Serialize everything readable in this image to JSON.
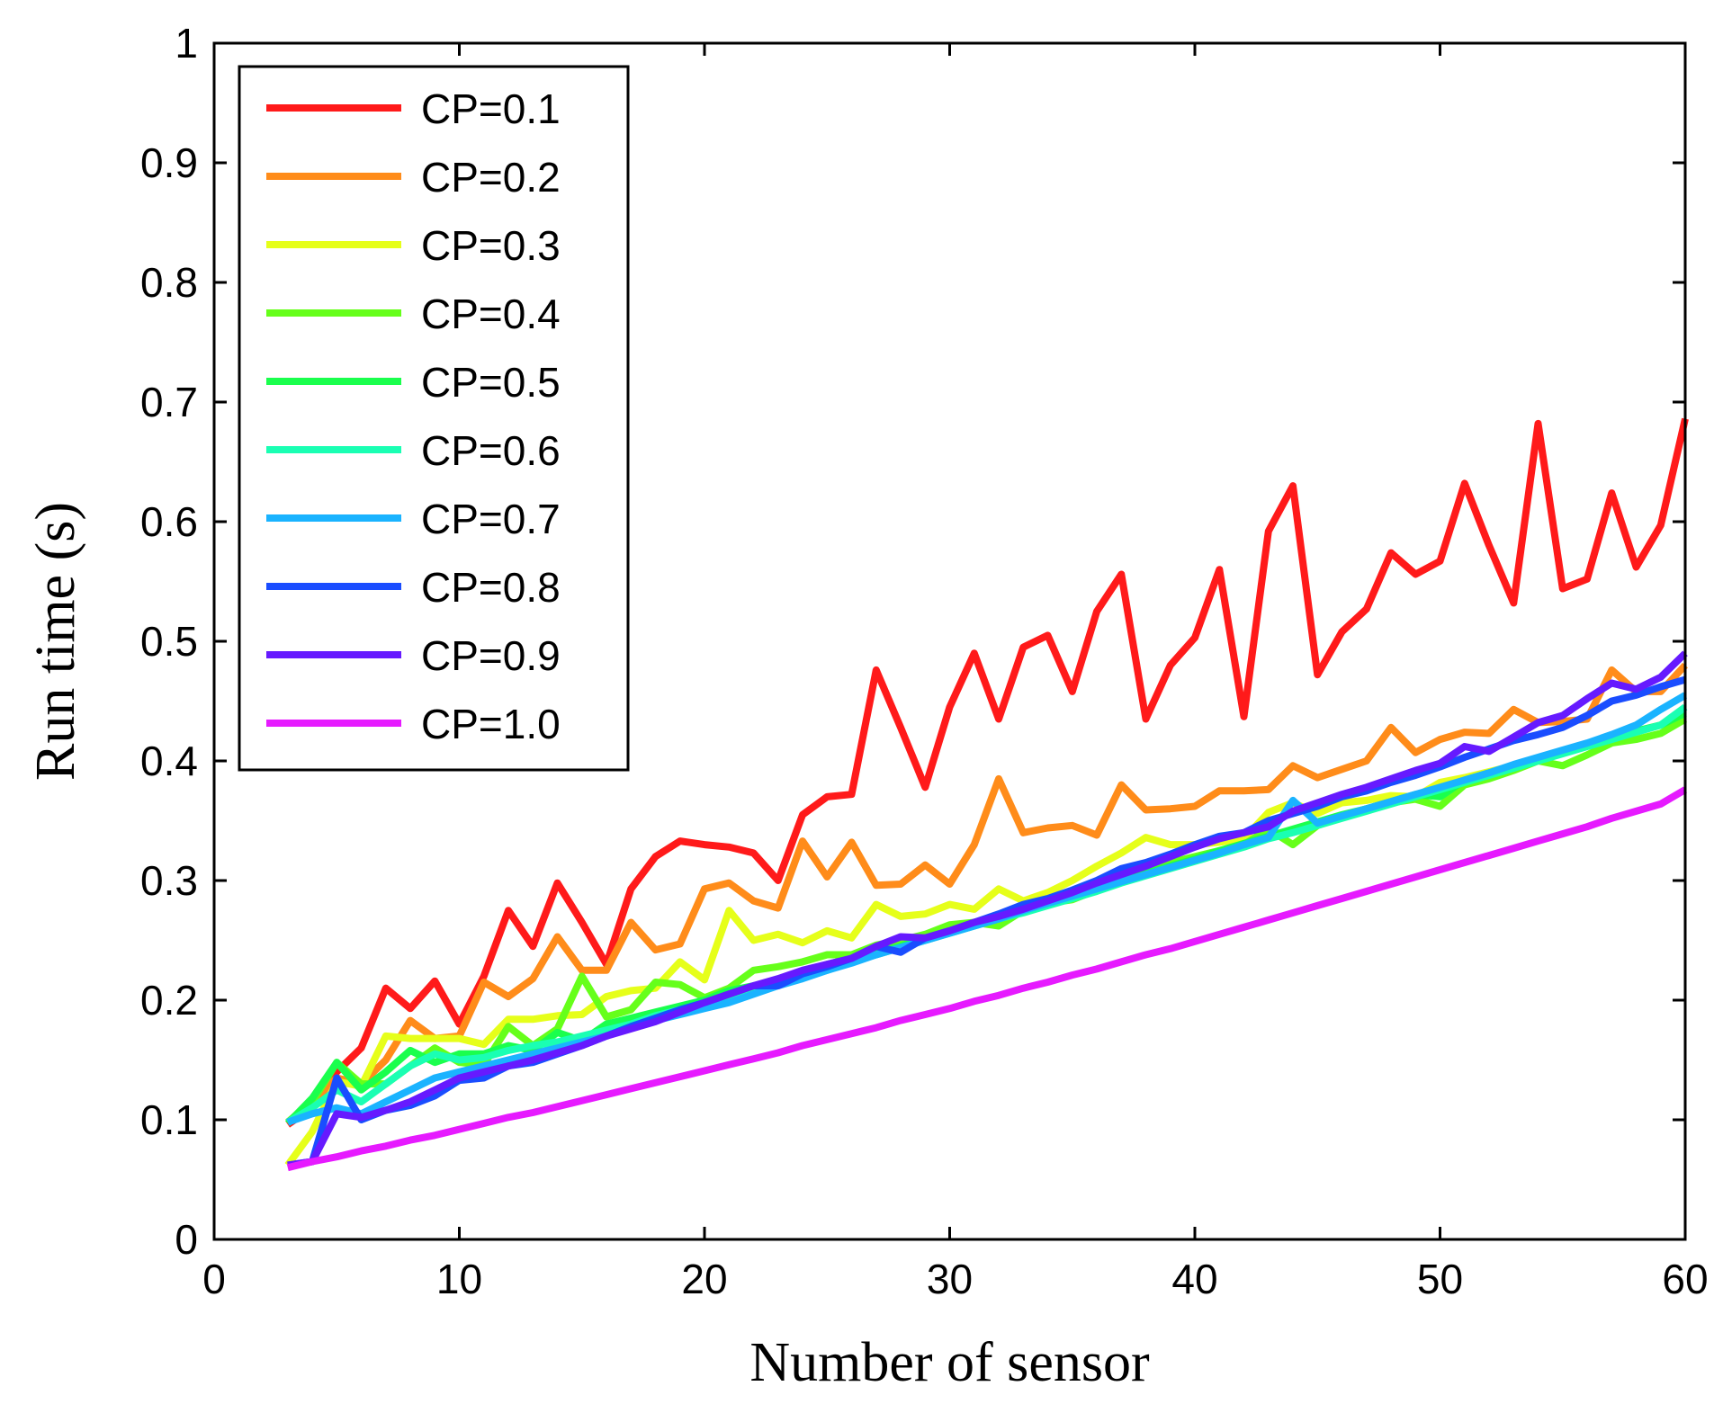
{
  "chart_data": {
    "type": "line",
    "title": "",
    "xlabel": "Number of sensor",
    "ylabel": "Run time (s)",
    "xlim": [
      0,
      60
    ],
    "ylim": [
      0,
      1
    ],
    "grid": false,
    "legend_position": "top-left",
    "xticks": [
      "0",
      "10",
      "20",
      "30",
      "40",
      "50",
      "60"
    ],
    "yticks": [
      "0",
      "0.1",
      "0.2",
      "0.3",
      "0.4",
      "0.5",
      "0.6",
      "0.7",
      "0.8",
      "0.9",
      "1"
    ],
    "x": [
      3,
      4,
      5,
      6,
      7,
      8,
      9,
      10,
      11,
      12,
      13,
      14,
      15,
      16,
      17,
      18,
      19,
      20,
      21,
      22,
      23,
      24,
      25,
      26,
      27,
      28,
      29,
      30,
      31,
      32,
      33,
      34,
      35,
      36,
      37,
      38,
      39,
      40,
      41,
      42,
      43,
      44,
      45,
      46,
      47,
      48,
      49,
      50,
      51,
      52,
      53,
      54,
      55,
      56,
      57,
      58,
      59,
      60
    ],
    "series": [
      {
        "name": "CP=0.1",
        "color": "#ff1a1a",
        "values": [
          0.096,
          0.11,
          0.14,
          0.16,
          0.21,
          0.193,
          0.216,
          0.18,
          0.22,
          0.275,
          0.245,
          0.298,
          0.265,
          0.23,
          0.293,
          0.32,
          0.333,
          0.33,
          0.328,
          0.323,
          0.3,
          0.355,
          0.37,
          0.372,
          0.476,
          0.428,
          0.378,
          0.445,
          0.49,
          0.435,
          0.495,
          0.505,
          0.458,
          0.525,
          0.556,
          0.435,
          0.48,
          0.503,
          0.56,
          0.437,
          0.592,
          0.63,
          0.472,
          0.508,
          0.527,
          0.574,
          0.556,
          0.567,
          0.632,
          0.58,
          0.532,
          0.682,
          0.544,
          0.552,
          0.624,
          0.562,
          0.597,
          0.686
        ]
      },
      {
        "name": "CP=0.2",
        "color": "#ff8c1a",
        "values": [
          0.098,
          0.115,
          0.135,
          0.13,
          0.15,
          0.183,
          0.168,
          0.17,
          0.215,
          0.203,
          0.218,
          0.253,
          0.225,
          0.225,
          0.265,
          0.242,
          0.247,
          0.293,
          0.298,
          0.283,
          0.277,
          0.333,
          0.303,
          0.332,
          0.296,
          0.297,
          0.313,
          0.297,
          0.33,
          0.385,
          0.34,
          0.344,
          0.346,
          0.338,
          0.38,
          0.359,
          0.36,
          0.362,
          0.375,
          0.375,
          0.376,
          0.396,
          0.386,
          0.393,
          0.4,
          0.428,
          0.407,
          0.418,
          0.424,
          0.423,
          0.443,
          0.432,
          0.433,
          0.435,
          0.476,
          0.458,
          0.458,
          0.48
        ]
      },
      {
        "name": "CP=0.3",
        "color": "#e6ff1a",
        "values": [
          0.062,
          0.09,
          0.132,
          0.128,
          0.17,
          0.168,
          0.168,
          0.168,
          0.163,
          0.184,
          0.184,
          0.187,
          0.188,
          0.203,
          0.208,
          0.21,
          0.232,
          0.217,
          0.275,
          0.25,
          0.255,
          0.248,
          0.258,
          0.252,
          0.28,
          0.27,
          0.272,
          0.28,
          0.276,
          0.293,
          0.283,
          0.29,
          0.3,
          0.312,
          0.323,
          0.336,
          0.33,
          0.33,
          0.332,
          0.335,
          0.357,
          0.365,
          0.356,
          0.365,
          0.367,
          0.371,
          0.37,
          0.382,
          0.386,
          0.391,
          0.396,
          0.401,
          0.407,
          0.413,
          0.418,
          0.424,
          0.43,
          0.437
        ]
      },
      {
        "name": "CP=0.4",
        "color": "#66ff1a",
        "values": [
          0.098,
          0.115,
          0.148,
          0.13,
          0.13,
          0.145,
          0.16,
          0.148,
          0.146,
          0.178,
          0.162,
          0.176,
          0.22,
          0.186,
          0.192,
          0.215,
          0.213,
          0.202,
          0.21,
          0.225,
          0.228,
          0.232,
          0.238,
          0.238,
          0.246,
          0.25,
          0.255,
          0.263,
          0.265,
          0.262,
          0.275,
          0.281,
          0.284,
          0.292,
          0.3,
          0.309,
          0.315,
          0.32,
          0.325,
          0.33,
          0.343,
          0.33,
          0.346,
          0.353,
          0.36,
          0.365,
          0.368,
          0.362,
          0.38,
          0.385,
          0.392,
          0.4,
          0.396,
          0.405,
          0.415,
          0.418,
          0.423,
          0.435
        ]
      },
      {
        "name": "CP=0.5",
        "color": "#1aff4d",
        "values": [
          0.097,
          0.118,
          0.148,
          0.125,
          0.14,
          0.158,
          0.148,
          0.155,
          0.155,
          0.162,
          0.158,
          0.173,
          0.166,
          0.18,
          0.185,
          0.19,
          0.195,
          0.2,
          0.208,
          0.212,
          0.215,
          0.222,
          0.23,
          0.235,
          0.24,
          0.245,
          0.252,
          0.258,
          0.265,
          0.27,
          0.275,
          0.282,
          0.288,
          0.294,
          0.3,
          0.306,
          0.312,
          0.318,
          0.325,
          0.331,
          0.337,
          0.343,
          0.349,
          0.355,
          0.36,
          0.366,
          0.372,
          0.37,
          0.384,
          0.39,
          0.396,
          0.401,
          0.407,
          0.413,
          0.419,
          0.425,
          0.43,
          0.44
        ]
      },
      {
        "name": "CP=0.6",
        "color": "#1affb3",
        "values": [
          0.098,
          0.11,
          0.125,
          0.115,
          0.13,
          0.145,
          0.155,
          0.15,
          0.152,
          0.158,
          0.162,
          0.165,
          0.17,
          0.175,
          0.18,
          0.187,
          0.192,
          0.198,
          0.203,
          0.208,
          0.213,
          0.22,
          0.225,
          0.232,
          0.238,
          0.244,
          0.25,
          0.256,
          0.262,
          0.268,
          0.273,
          0.279,
          0.285,
          0.291,
          0.298,
          0.304,
          0.31,
          0.316,
          0.322,
          0.328,
          0.335,
          0.34,
          0.346,
          0.352,
          0.358,
          0.364,
          0.37,
          0.376,
          0.382,
          0.388,
          0.394,
          0.4,
          0.406,
          0.412,
          0.418,
          0.424,
          0.43,
          0.445
        ]
      },
      {
        "name": "CP=0.7",
        "color": "#1ab3ff",
        "values": [
          0.098,
          0.105,
          0.11,
          0.105,
          0.115,
          0.125,
          0.135,
          0.14,
          0.145,
          0.15,
          0.155,
          0.16,
          0.165,
          0.17,
          0.178,
          0.183,
          0.188,
          0.193,
          0.198,
          0.205,
          0.212,
          0.218,
          0.225,
          0.231,
          0.238,
          0.244,
          0.25,
          0.256,
          0.262,
          0.268,
          0.275,
          0.281,
          0.287,
          0.293,
          0.299,
          0.305,
          0.311,
          0.317,
          0.323,
          0.33,
          0.336,
          0.367,
          0.348,
          0.354,
          0.36,
          0.366,
          0.372,
          0.378,
          0.384,
          0.39,
          0.397,
          0.403,
          0.409,
          0.415,
          0.422,
          0.43,
          0.443,
          0.455
        ]
      },
      {
        "name": "CP=0.8",
        "color": "#1a4dff",
        "values": [
          0.062,
          0.065,
          0.135,
          0.1,
          0.108,
          0.112,
          0.12,
          0.133,
          0.135,
          0.145,
          0.148,
          0.155,
          0.162,
          0.17,
          0.178,
          0.185,
          0.192,
          0.198,
          0.205,
          0.212,
          0.212,
          0.222,
          0.228,
          0.235,
          0.245,
          0.24,
          0.252,
          0.258,
          0.265,
          0.272,
          0.28,
          0.285,
          0.292,
          0.3,
          0.31,
          0.315,
          0.322,
          0.33,
          0.337,
          0.34,
          0.35,
          0.356,
          0.362,
          0.37,
          0.375,
          0.382,
          0.388,
          0.395,
          0.403,
          0.41,
          0.417,
          0.422,
          0.428,
          0.438,
          0.45,
          0.455,
          0.462,
          0.468
        ]
      },
      {
        "name": "CP=0.9",
        "color": "#661aff",
        "values": [
          0.062,
          0.065,
          0.105,
          0.102,
          0.108,
          0.115,
          0.125,
          0.135,
          0.14,
          0.145,
          0.15,
          0.156,
          0.162,
          0.17,
          0.176,
          0.182,
          0.19,
          0.198,
          0.205,
          0.212,
          0.218,
          0.225,
          0.23,
          0.235,
          0.245,
          0.253,
          0.252,
          0.258,
          0.265,
          0.27,
          0.276,
          0.283,
          0.29,
          0.298,
          0.305,
          0.312,
          0.32,
          0.328,
          0.335,
          0.34,
          0.345,
          0.358,
          0.365,
          0.372,
          0.378,
          0.385,
          0.392,
          0.398,
          0.412,
          0.408,
          0.42,
          0.432,
          0.438,
          0.452,
          0.465,
          0.46,
          0.47,
          0.49
        ]
      },
      {
        "name": "CP=1.0",
        "color": "#e61aff",
        "values": [
          0.06,
          0.065,
          0.069,
          0.074,
          0.078,
          0.083,
          0.087,
          0.092,
          0.097,
          0.102,
          0.106,
          0.111,
          0.116,
          0.121,
          0.126,
          0.131,
          0.136,
          0.141,
          0.146,
          0.151,
          0.156,
          0.162,
          0.167,
          0.172,
          0.177,
          0.183,
          0.188,
          0.193,
          0.199,
          0.204,
          0.21,
          0.215,
          0.221,
          0.226,
          0.232,
          0.238,
          0.243,
          0.249,
          0.255,
          0.261,
          0.267,
          0.273,
          0.279,
          0.285,
          0.291,
          0.297,
          0.303,
          0.309,
          0.315,
          0.321,
          0.327,
          0.333,
          0.339,
          0.345,
          0.352,
          0.358,
          0.364,
          0.376
        ]
      }
    ]
  }
}
